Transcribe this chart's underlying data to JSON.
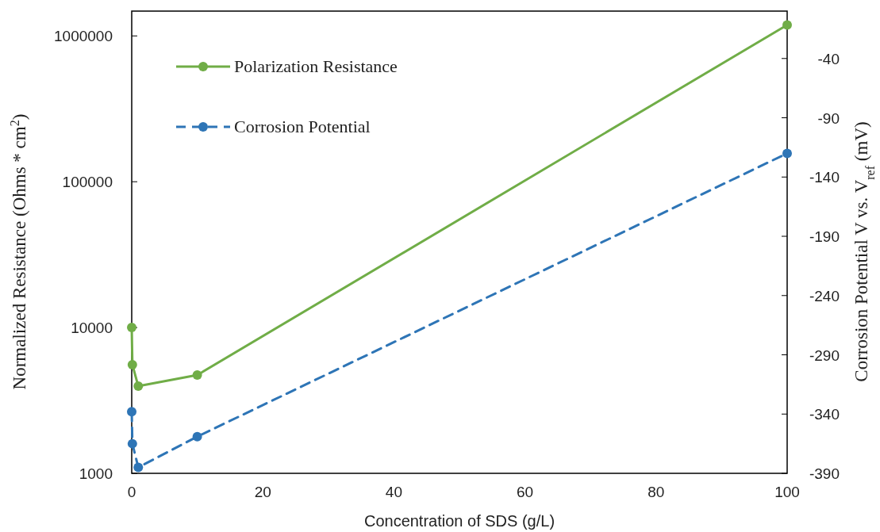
{
  "chart_data": {
    "type": "line",
    "xlabel": "Concentration of SDS (g/L)",
    "ylabel": "Normalized Resistance (Ohms * cm$^{2}$)",
    "y2label": "Corrosion Potential V vs. V$_{ref}$ (mV)",
    "x": [
      0,
      0.1,
      1,
      10,
      100
    ],
    "series": [
      {
        "name": "Polarization Resistance",
        "color": "#70ad47",
        "values": [
          10000,
          5560,
          3960,
          4720,
          1190000
        ],
        "line_style": "solid"
      },
      {
        "name": "Corrosion Potential",
        "color": "#2e75b6",
        "values": [
          -338,
          -365,
          -385,
          -359,
          -120
        ],
        "axis": "y2",
        "line_style": "dashed"
      }
    ],
    "xlim": [
      0,
      100
    ],
    "xticks": [
      0,
      20,
      40,
      60,
      80,
      100
    ],
    "ylim": [
      1000,
      1480000
    ],
    "yticks": [
      1000,
      10000,
      100000,
      1000000
    ],
    "log": "y",
    "y2lim": [
      -390,
      0
    ],
    "y2ticks": [
      -390,
      -340,
      -290,
      -240,
      -190,
      -140,
      -90,
      -40
    ],
    "marker": "circle",
    "legend": "top left",
    "grid": false
  }
}
